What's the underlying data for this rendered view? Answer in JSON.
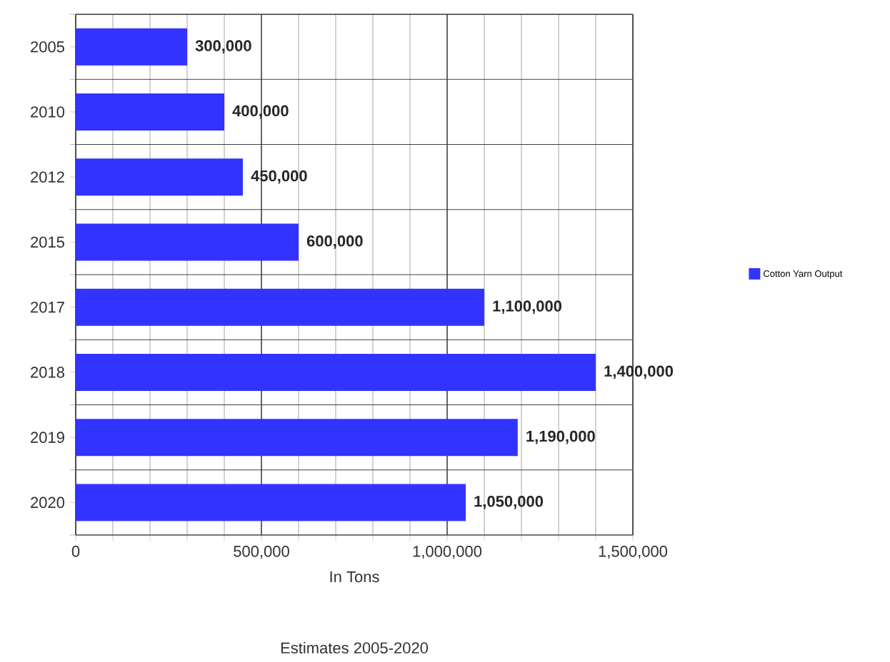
{
  "chart_data": {
    "type": "bar",
    "orientation": "horizontal",
    "title": "Estimates  2005-2020",
    "xlabel": "In Tons",
    "categories": [
      "2005",
      "2010",
      "2012",
      "2015",
      "2017",
      "2018",
      "2019",
      "2020"
    ],
    "series": [
      {
        "name": "Cotton Yarn Output",
        "color": "#3333ff",
        "values": [
          300000,
          400000,
          450000,
          600000,
          1100000,
          1400000,
          1190000,
          1050000
        ],
        "value_labels": [
          "300,000",
          "400,000",
          "450,000",
          "600,000",
          "1,100,000",
          "1,400,000",
          "1,190,000",
          "1,050,000"
        ]
      }
    ],
    "xlim": [
      0,
      1500000
    ],
    "xticks": [
      {
        "value": 0,
        "label": "0"
      },
      {
        "value": 100000,
        "label": null
      },
      {
        "value": 200000,
        "label": null
      },
      {
        "value": 300000,
        "label": null
      },
      {
        "value": 400000,
        "label": null
      },
      {
        "value": 500000,
        "label": "500,000"
      },
      {
        "value": 600000,
        "label": null
      },
      {
        "value": 700000,
        "label": null
      },
      {
        "value": 800000,
        "label": null
      },
      {
        "value": 900000,
        "label": null
      },
      {
        "value": 1000000,
        "label": "1,000,000"
      },
      {
        "value": 1100000,
        "label": null
      },
      {
        "value": 1200000,
        "label": null
      },
      {
        "value": 1300000,
        "label": null
      },
      {
        "value": 1400000,
        "label": null
      },
      {
        "value": 1500000,
        "label": "1,500,000"
      }
    ],
    "grid": true,
    "legend": "right"
  }
}
